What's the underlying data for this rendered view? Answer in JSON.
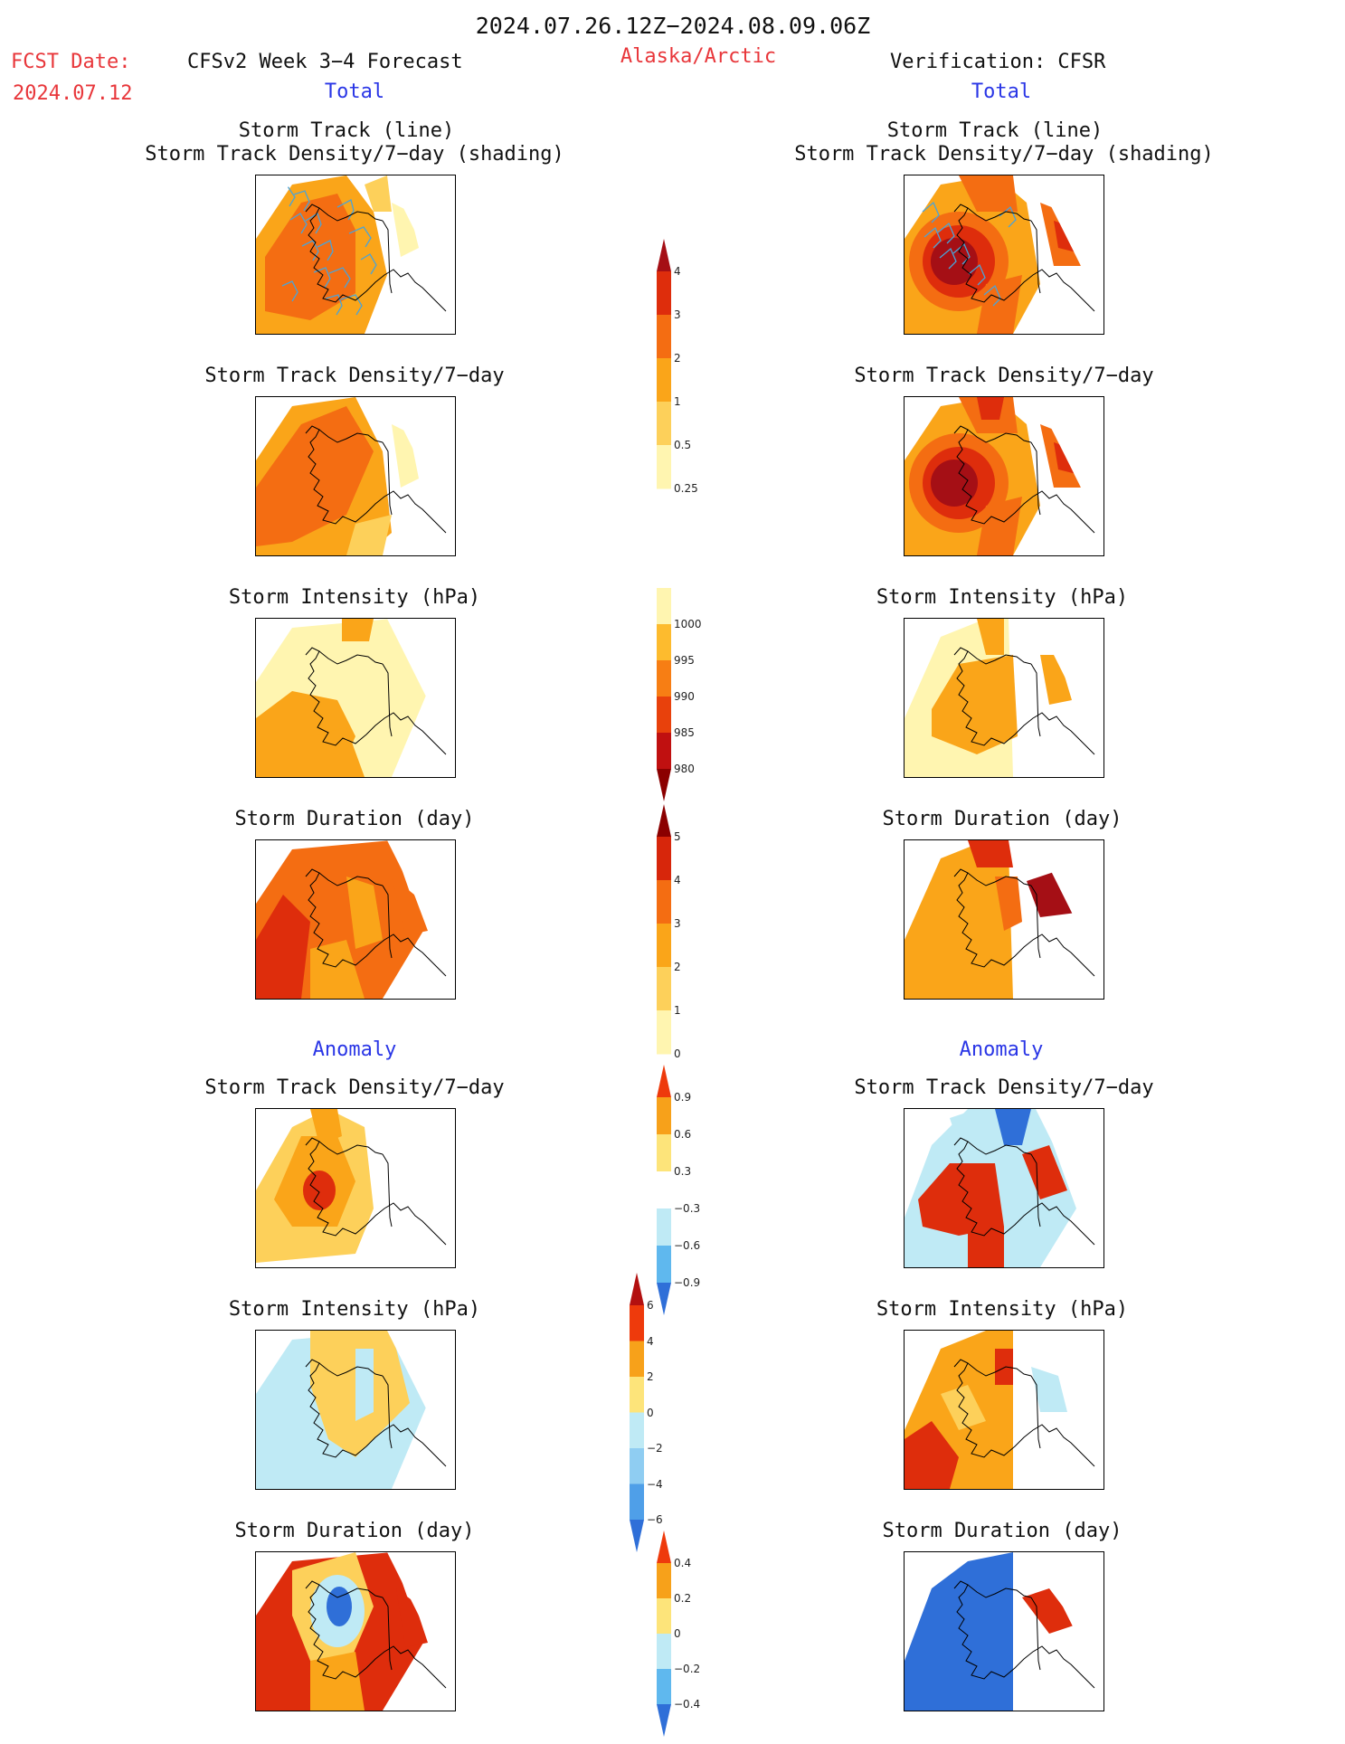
{
  "header": {
    "period": "2024.07.26.12Z−2024.08.09.06Z",
    "fcst_label": "FCST Date:",
    "fcst_date": "2024.07.12",
    "model": "CFSv2 Week 3−4 Forecast",
    "region": "Alaska/Arctic",
    "verification": "Verification: CFSR",
    "total_left": "Total",
    "total_right": "Total",
    "anomaly_left": "Anomaly",
    "anomaly_right": "Anomaly"
  },
  "panel_titles": {
    "r1_line1": "Storm Track (line)",
    "r1_line2": "Storm Track Density/7−day (shading)",
    "r2": "Storm Track Density/7−day",
    "r3": "Storm Intensity (hPa)",
    "r4": "Storm Duration (day)",
    "r5": "Storm Track Density/7−day",
    "r6": "Storm Intensity (hPa)",
    "r7": "Storm Duration (day)"
  },
  "colorbars": {
    "density": {
      "labels": [
        "4",
        "3",
        "2",
        "1",
        "0.5",
        "0.25"
      ],
      "colors": [
        "#a50f15",
        "#de2d0c",
        "#f46d12",
        "#faa519",
        "#fdd05a",
        "#fff5b0"
      ]
    },
    "intensity": {
      "labels": [
        "1000",
        "995",
        "990",
        "985",
        "980"
      ],
      "colors": [
        "#fff5b0",
        "#fdbb2e",
        "#f77e14",
        "#e8410c",
        "#c01010",
        "#8b0000"
      ]
    },
    "duration": {
      "labels": [
        "5",
        "4",
        "3",
        "2",
        "1",
        "0"
      ],
      "colors": [
        "#8b0000",
        "#d7260b",
        "#f46d12",
        "#faa519",
        "#fdd05a",
        "#fff5b0"
      ]
    },
    "anom_density": {
      "labels": [
        "0.9",
        "0.6",
        "0.3",
        "−0.3",
        "−0.6",
        "−0.9"
      ],
      "colors": [
        "#ee3a0c",
        "#f7a11a",
        "#fde47a",
        "#ffffff",
        "#bfeaf5",
        "#5fb8ee",
        "#2f6fd8"
      ]
    },
    "anom_intensity": {
      "labels": [
        "6",
        "4",
        "2",
        "0",
        "−2",
        "−4",
        "−6"
      ],
      "colors": [
        "#b31010",
        "#ee3a0c",
        "#f7a11a",
        "#fde47a",
        "#bfeaf5",
        "#8fcdf2",
        "#4f9fe8",
        "#2f6fd8"
      ]
    },
    "anom_duration": {
      "labels": [
        "0.4",
        "0.2",
        "0",
        "−0.2",
        "−0.4"
      ],
      "colors": [
        "#ee3a0c",
        "#f7a11a",
        "#fde47a",
        "#bfeaf5",
        "#5fb8ee",
        "#2f6fd8"
      ]
    }
  },
  "palette": {
    "yellow_light": "#fff5b0",
    "yellow": "#fdd05a",
    "orange_light": "#faa519",
    "orange": "#f46d12",
    "red": "#de2d0c",
    "dark_red": "#a50f15",
    "cyan_light": "#bfeaf5",
    "blue": "#2f6fd8",
    "track_line": "#4aa3d8"
  }
}
